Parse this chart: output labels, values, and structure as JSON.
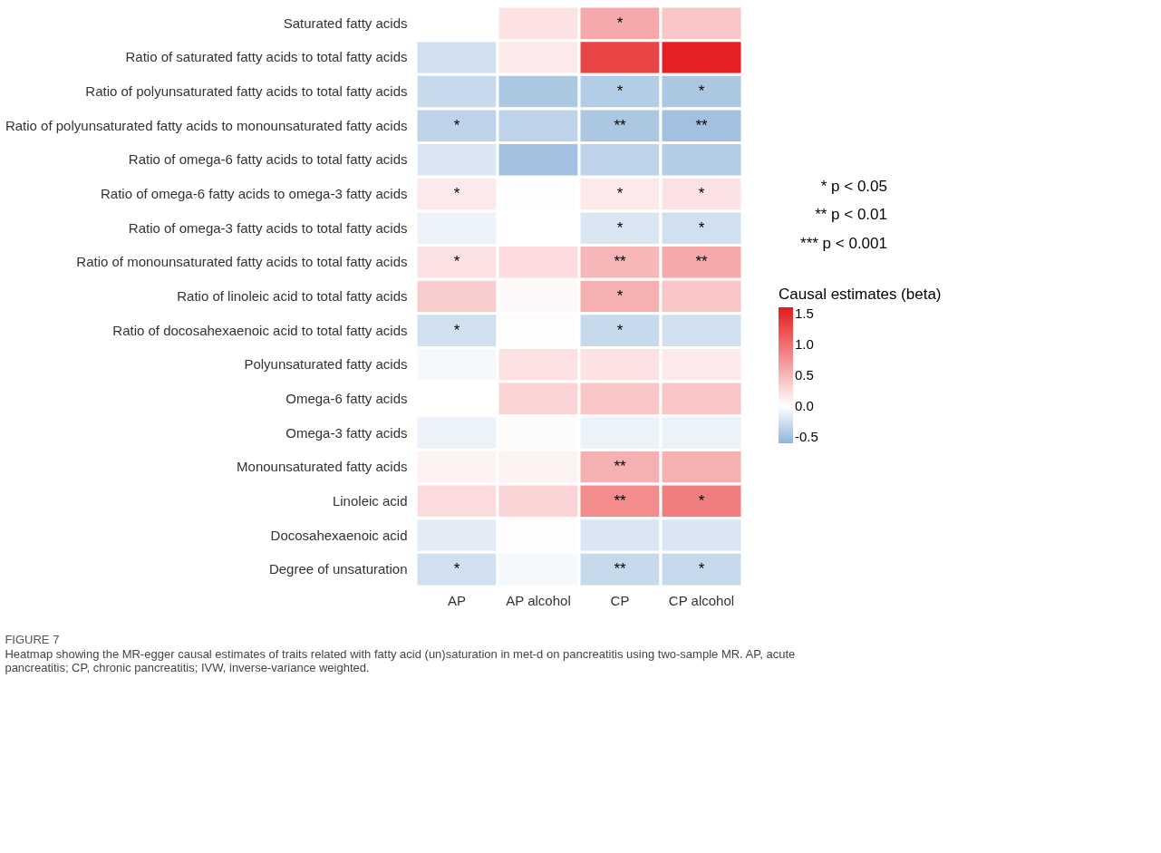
{
  "chart_data": {
    "type": "heatmap",
    "title": "FIGURE 7",
    "subtitle": "Heatmap showing the MR-egger causal estimates of traits related with fatty acid (un)saturation in met-d on pancreatitis using two-sample MR. AP, acute pancreatitis; CP, chronic pancreatitis; IVW, inverse-variance weighted.",
    "categories": [
      "AP",
      "AP alcohol",
      "CP",
      "CP alcohol"
    ],
    "y_categories": [
      "Saturated fatty acids",
      "Ratio of saturated fatty acids to total fatty acids",
      "Ratio of polyunsaturated fatty acids to total fatty acids",
      "Ratio of polyunsaturated fatty acids to monounsaturated fatty acids",
      "Ratio of omega-6 fatty acids to total fatty acids",
      "Ratio of omega-6 fatty acids to omega-3 fatty acids",
      "Ratio of omega-3 fatty acids to total fatty acids",
      "Ratio of monounsaturated fatty acids to total fatty acids",
      "Ratio of linoleic acid to total fatty acids",
      "Ratio of docosahexaenoic acid to total fatty acids",
      "Polyunsaturated fatty acids",
      "Omega-6 fatty acids",
      "Omega-3 fatty acids",
      "Monounsaturated fatty acids",
      "Linoleic acid",
      "Docosahexaenoic acid",
      "Degree of unsaturation"
    ],
    "cells": [
      [
        0.0,
        0.2,
        0.6,
        0.4
      ],
      [
        -0.25,
        0.15,
        1.3,
        1.55
      ],
      [
        -0.3,
        -0.45,
        -0.4,
        -0.45
      ],
      [
        -0.35,
        -0.35,
        -0.45,
        -0.5
      ],
      [
        -0.2,
        -0.5,
        -0.35,
        -0.4
      ],
      [
        0.15,
        -0.02,
        0.15,
        0.2
      ],
      [
        -0.1,
        0.0,
        -0.2,
        -0.25
      ],
      [
        0.2,
        0.25,
        0.5,
        0.6
      ],
      [
        0.35,
        0.05,
        0.55,
        0.4
      ],
      [
        -0.25,
        0.02,
        -0.3,
        -0.25
      ],
      [
        -0.05,
        0.2,
        0.2,
        0.15
      ],
      [
        0.0,
        0.3,
        0.4,
        0.4
      ],
      [
        -0.1,
        0.03,
        -0.1,
        -0.1
      ],
      [
        0.1,
        0.1,
        0.55,
        0.55
      ],
      [
        0.25,
        0.3,
        0.8,
        0.9
      ],
      [
        -0.15,
        0.02,
        -0.2,
        -0.2
      ],
      [
        -0.25,
        -0.05,
        -0.3,
        -0.3
      ]
    ],
    "cell_labels": [
      [
        null,
        null,
        "*",
        null
      ],
      [
        null,
        null,
        null,
        null
      ],
      [
        null,
        null,
        "*",
        "*"
      ],
      [
        "*",
        null,
        "**",
        "**"
      ],
      [
        null,
        null,
        null,
        null
      ],
      [
        "*",
        null,
        "*",
        "*"
      ],
      [
        null,
        null,
        "*",
        "*"
      ],
      [
        "*",
        null,
        "**",
        "**"
      ],
      [
        null,
        null,
        "*",
        null
      ],
      [
        "*",
        null,
        "*",
        null
      ],
      [
        null,
        null,
        null,
        null
      ],
      [
        null,
        null,
        null,
        null
      ],
      [
        null,
        null,
        null,
        null
      ],
      [
        null,
        null,
        "**",
        null
      ],
      [
        null,
        null,
        "**",
        "*"
      ],
      [
        null,
        null,
        null,
        null
      ],
      [
        "*",
        null,
        "**",
        "*"
      ]
    ],
    "clabel": "Causal estimates (beta)",
    "clim": [
      -0.6,
      1.6
    ],
    "cticks": [
      -0.5,
      {
        "value": 0,
        "label": "0.0"
      },
      0.5,
      {
        "value": 1,
        "label": "1.0"
      },
      1.5
    ],
    "annotations": [
      "* p < 0.05",
      "** p < 0.01",
      "*** p < 0.001"
    ]
  }
}
